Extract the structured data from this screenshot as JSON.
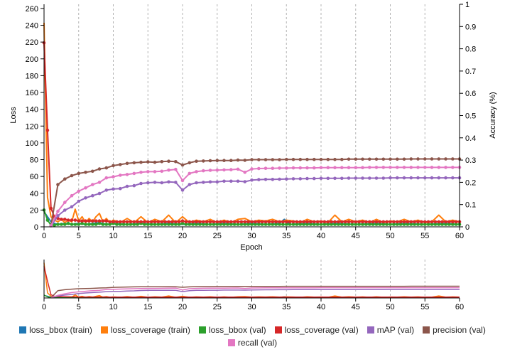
{
  "chart_data": {
    "type": "line",
    "xlabel": "Epoch",
    "ylabel_left": "Loss",
    "ylabel_right": "Accuracy (%)",
    "xlim": [
      0,
      60
    ],
    "ylim_left": [
      0,
      265
    ],
    "ylim_right": [
      0,
      1
    ],
    "x_ticks": [
      0,
      5,
      10,
      15,
      20,
      25,
      30,
      35,
      40,
      45,
      50,
      55,
      60
    ],
    "y_ticks_left": [
      0,
      20,
      40,
      60,
      80,
      100,
      120,
      140,
      160,
      180,
      200,
      220,
      240,
      260
    ],
    "y_ticks_right": [
      0,
      0.1,
      0.2,
      0.3,
      0.4,
      0.5,
      0.6,
      0.7,
      0.8,
      0.9,
      1
    ],
    "vertical_gridlines": true,
    "legend_position": "bottom",
    "series": [
      {
        "name": "loss_bbox (train)",
        "axis": "left",
        "color": "#1f77b4",
        "points": false,
        "x": [
          0,
          0.5,
          1,
          1.5,
          2,
          3,
          4,
          5,
          6,
          7,
          8,
          9,
          10,
          12,
          14,
          16,
          18,
          20,
          22,
          24,
          26,
          28,
          30,
          32,
          34,
          34.7,
          35.5,
          38,
          40,
          42,
          45,
          48,
          50,
          52,
          55,
          58,
          60
        ],
        "y": [
          18,
          12,
          6,
          4,
          3,
          4,
          3,
          4,
          3,
          4,
          5,
          3,
          4,
          3,
          4,
          3,
          4,
          3,
          4,
          3,
          4,
          3,
          4,
          3,
          4,
          9,
          3,
          4,
          3,
          4,
          3,
          4,
          3,
          4,
          3,
          4,
          3
        ]
      },
      {
        "name": "loss_coverage (train)",
        "axis": "left",
        "color": "#ff7f0e",
        "points": false,
        "x": [
          0,
          0.5,
          1,
          1.5,
          2,
          2.5,
          3,
          3.5,
          4,
          4.5,
          5,
          5.5,
          6,
          6.5,
          7,
          7.5,
          8,
          8.5,
          9,
          9.5,
          10,
          11,
          12,
          13,
          14,
          15,
          16,
          17,
          18,
          19,
          20,
          21,
          22,
          23,
          24,
          25,
          26,
          27,
          28,
          29,
          30,
          31,
          32,
          33,
          34,
          35,
          36,
          37,
          38,
          39,
          40,
          41,
          42,
          43,
          44,
          45,
          46,
          47,
          48,
          49,
          50,
          51,
          52,
          53,
          54,
          55,
          56,
          57,
          58,
          59,
          60
        ],
        "y": [
          243,
          35,
          12,
          8,
          6,
          9,
          5,
          8,
          6,
          21,
          7,
          12,
          5,
          10,
          6,
          12,
          16,
          6,
          10,
          5,
          8,
          5,
          10,
          5,
          12,
          5,
          9,
          6,
          14,
          5,
          12,
          5,
          8,
          6,
          9,
          5,
          8,
          5,
          9,
          10,
          6,
          8,
          7,
          9,
          6,
          8,
          7,
          5,
          9,
          6,
          7,
          5,
          14,
          6,
          9,
          6,
          8,
          5,
          9,
          5,
          7,
          6,
          9,
          6,
          8,
          5,
          6,
          14,
          6,
          8,
          6
        ]
      },
      {
        "name": "loss_bbox (val)",
        "axis": "left",
        "color": "#2ca02c",
        "points": true,
        "x": [
          0,
          0.5,
          1,
          1.5,
          2,
          2.5,
          3,
          3.5,
          4,
          4.5,
          5,
          5.5,
          6,
          6.5,
          7,
          7.5,
          8,
          8.5,
          9,
          9.5,
          10,
          10.5,
          11,
          11.5,
          12,
          12.5,
          13,
          13.5,
          14,
          14.5,
          15,
          15.5,
          16,
          16.5,
          17,
          17.5,
          18,
          18.5,
          19,
          19.5,
          20,
          20.5,
          21,
          21.5,
          22,
          22.5,
          23,
          23.5,
          24,
          24.5,
          25,
          25.5,
          26,
          26.5,
          27,
          27.5,
          28,
          28.5,
          29,
          29.5,
          30,
          30.5,
          31,
          31.5,
          32,
          32.5,
          33,
          33.5,
          34,
          34.5,
          35,
          35.5,
          36,
          36.5,
          37,
          37.5,
          38,
          38.5,
          39,
          39.5,
          40,
          40.5,
          41,
          41.5,
          42,
          42.5,
          43,
          43.5,
          44,
          44.5,
          45,
          45.5,
          46,
          46.5,
          47,
          47.5,
          48,
          48.5,
          49,
          49.5,
          50,
          50.5,
          51,
          51.5,
          52,
          52.5,
          53,
          53.5,
          54,
          54.5,
          55,
          55.5,
          56,
          56.5,
          57,
          57.5,
          58,
          58.5,
          59,
          59.5,
          60
        ],
        "y": [
          20,
          8,
          2,
          2,
          3,
          3,
          3,
          4,
          3,
          3,
          3,
          4,
          3,
          3,
          3,
          3,
          4,
          3,
          3,
          3,
          4,
          3,
          3,
          3,
          3,
          3,
          3,
          3,
          4,
          3,
          3,
          3,
          3,
          3,
          3,
          3,
          3,
          3,
          3,
          3,
          4,
          3,
          3,
          3,
          3,
          3,
          3,
          3,
          3,
          3,
          3,
          3,
          3,
          3,
          3,
          3,
          3,
          3,
          3,
          3,
          3,
          3,
          3,
          3,
          3,
          3,
          3,
          3,
          3,
          3,
          3,
          3,
          3,
          3,
          3,
          3,
          3,
          3,
          3,
          3,
          3,
          3,
          3,
          3,
          3,
          3,
          3,
          3,
          3,
          3,
          3,
          3,
          3,
          3,
          3,
          3,
          3,
          3,
          3,
          3,
          3,
          3,
          3,
          3,
          3,
          3,
          3,
          3,
          3,
          3,
          3,
          3,
          3,
          3,
          3,
          3,
          3,
          3,
          3,
          3,
          3
        ]
      },
      {
        "name": "loss_coverage (val)",
        "axis": "left",
        "color": "#d62728",
        "points": true,
        "x": [
          0,
          0.5,
          1,
          1.5,
          2,
          2.5,
          3,
          3.5,
          4,
          4.5,
          5,
          5.5,
          6,
          6.5,
          7,
          7.5,
          8,
          8.5,
          9,
          9.5,
          10,
          10.5,
          11,
          11.5,
          12,
          12.5,
          13,
          13.5,
          14,
          14.5,
          15,
          15.5,
          16,
          16.5,
          17,
          17.5,
          18,
          18.5,
          19,
          19.5,
          20,
          20.5,
          21,
          21.5,
          22,
          22.5,
          23,
          23.5,
          24,
          24.5,
          25,
          25.5,
          26,
          26.5,
          27,
          27.5,
          28,
          28.5,
          29,
          29.5,
          30,
          30.5,
          31,
          31.5,
          32,
          32.5,
          33,
          33.5,
          34,
          34.5,
          35,
          35.5,
          36,
          36.5,
          37,
          37.5,
          38,
          38.5,
          39,
          39.5,
          40,
          40.5,
          41,
          41.5,
          42,
          42.5,
          43,
          43.5,
          44,
          44.5,
          45,
          45.5,
          46,
          46.5,
          47,
          47.5,
          48,
          48.5,
          49,
          49.5,
          50,
          50.5,
          51,
          51.5,
          52,
          52.5,
          53,
          53.5,
          54,
          54.5,
          55,
          55.5,
          56,
          56.5,
          57,
          57.5,
          58,
          58.5,
          59,
          59.5,
          60
        ],
        "y": [
          219,
          115,
          22,
          12,
          10,
          9,
          9,
          8,
          8,
          8,
          7,
          7,
          7,
          7,
          7,
          7,
          7,
          7,
          7,
          6,
          6,
          6,
          6,
          6,
          6,
          6,
          6,
          6,
          6,
          6,
          6,
          6,
          6,
          6,
          6,
          6,
          6,
          6,
          6,
          6,
          7,
          6,
          6,
          6,
          6,
          6,
          6,
          6,
          6,
          6,
          6,
          6,
          6,
          6,
          6,
          6,
          6,
          6,
          6,
          6,
          6,
          6,
          6,
          6,
          6,
          6,
          6,
          6,
          6,
          6,
          6,
          6,
          6,
          6,
          6,
          6,
          6,
          6,
          6,
          6,
          6,
          6,
          6,
          6,
          6,
          6,
          6,
          6,
          6,
          6,
          6,
          6,
          6,
          6,
          6,
          6,
          6,
          6,
          6,
          6,
          6,
          6,
          6,
          6,
          6,
          6,
          6,
          6,
          6,
          6,
          6,
          6,
          6,
          6,
          6,
          6,
          6,
          6,
          6,
          6,
          6
        ]
      },
      {
        "name": "mAP (val)",
        "axis": "right",
        "color": "#9467bd",
        "points": true,
        "x": [
          1,
          2,
          3,
          4,
          5,
          6,
          7,
          8,
          9,
          10,
          11,
          12,
          13,
          14,
          15,
          16,
          17,
          18,
          19,
          20,
          21,
          22,
          23,
          24,
          25,
          26,
          27,
          28,
          29,
          30,
          31,
          32,
          33,
          34,
          35,
          36,
          37,
          38,
          39,
          40,
          41,
          42,
          43,
          44,
          45,
          46,
          47,
          48,
          49,
          50,
          51,
          52,
          53,
          54,
          55,
          56,
          57,
          58,
          59,
          60
        ],
        "y": [
          0.005,
          0.05,
          0.075,
          0.09,
          0.115,
          0.13,
          0.14,
          0.15,
          0.165,
          0.17,
          0.172,
          0.182,
          0.185,
          0.195,
          0.198,
          0.2,
          0.198,
          0.202,
          0.2,
          0.165,
          0.19,
          0.198,
          0.2,
          0.202,
          0.202,
          0.205,
          0.205,
          0.205,
          0.203,
          0.21,
          0.212,
          0.213,
          0.213,
          0.214,
          0.215,
          0.216,
          0.216,
          0.217,
          0.217,
          0.218,
          0.218,
          0.218,
          0.218,
          0.219,
          0.219,
          0.219,
          0.219,
          0.219,
          0.219,
          0.22,
          0.22,
          0.22,
          0.22,
          0.22,
          0.22,
          0.22,
          0.22,
          0.22,
          0.22,
          0.22
        ]
      },
      {
        "name": "precision (val)",
        "axis": "right",
        "color": "#8c564b",
        "points": true,
        "x": [
          1,
          2,
          3,
          4,
          5,
          6,
          7,
          8,
          9,
          10,
          11,
          12,
          13,
          14,
          15,
          16,
          17,
          18,
          19,
          20,
          21,
          22,
          23,
          24,
          25,
          26,
          27,
          28,
          29,
          30,
          31,
          32,
          33,
          34,
          35,
          36,
          37,
          38,
          39,
          40,
          41,
          42,
          43,
          44,
          45,
          46,
          47,
          48,
          49,
          50,
          51,
          52,
          53,
          54,
          55,
          56,
          57,
          58,
          59,
          60
        ],
        "y": [
          0.005,
          0.19,
          0.215,
          0.23,
          0.24,
          0.245,
          0.25,
          0.26,
          0.265,
          0.275,
          0.28,
          0.285,
          0.288,
          0.29,
          0.292,
          0.29,
          0.293,
          0.295,
          0.293,
          0.278,
          0.288,
          0.295,
          0.296,
          0.297,
          0.298,
          0.298,
          0.298,
          0.3,
          0.299,
          0.302,
          0.302,
          0.302,
          0.302,
          0.302,
          0.303,
          0.303,
          0.303,
          0.303,
          0.303,
          0.303,
          0.303,
          0.303,
          0.303,
          0.304,
          0.304,
          0.304,
          0.304,
          0.304,
          0.304,
          0.304,
          0.304,
          0.304,
          0.305,
          0.305,
          0.305,
          0.305,
          0.305,
          0.305,
          0.305,
          0.305
        ]
      },
      {
        "name": "recall (val)",
        "axis": "right",
        "color": "#e377c2",
        "points": true,
        "x": [
          1,
          2,
          3,
          4,
          5,
          6,
          7,
          8,
          9,
          10,
          11,
          12,
          13,
          14,
          15,
          16,
          17,
          18,
          19,
          20,
          21,
          22,
          23,
          24,
          25,
          26,
          27,
          28,
          29,
          30,
          31,
          32,
          33,
          34,
          35,
          36,
          37,
          38,
          39,
          40,
          41,
          42,
          43,
          44,
          45,
          46,
          47,
          48,
          49,
          50,
          51,
          52,
          53,
          54,
          55,
          56,
          57,
          58,
          59,
          60
        ],
        "y": [
          0.005,
          0.07,
          0.11,
          0.14,
          0.16,
          0.175,
          0.19,
          0.2,
          0.22,
          0.225,
          0.232,
          0.235,
          0.24,
          0.245,
          0.248,
          0.248,
          0.25,
          0.255,
          0.258,
          0.208,
          0.24,
          0.248,
          0.252,
          0.254,
          0.255,
          0.256,
          0.257,
          0.259,
          0.245,
          0.26,
          0.262,
          0.263,
          0.263,
          0.264,
          0.264,
          0.265,
          0.265,
          0.265,
          0.265,
          0.266,
          0.266,
          0.266,
          0.266,
          0.266,
          0.266,
          0.266,
          0.267,
          0.267,
          0.267,
          0.267,
          0.267,
          0.267,
          0.267,
          0.267,
          0.267,
          0.267,
          0.267,
          0.267,
          0.267,
          0.267
        ]
      }
    ]
  }
}
